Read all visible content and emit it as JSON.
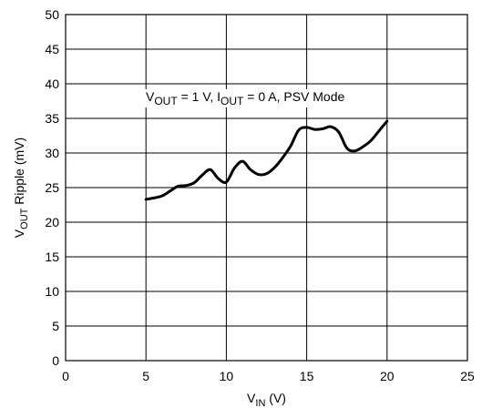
{
  "chart_data": {
    "type": "line",
    "annotation": {
      "v": "V",
      "out_sub": "OUT",
      "mid": " = 1 V, I",
      "out_sub2": "OUT",
      "rest": " = 0 A, PSV Mode"
    },
    "xlabel": {
      "main": "V",
      "sub": "IN",
      "rest": " (V)"
    },
    "ylabel": {
      "main": "V",
      "sub": "OUT",
      "rest": " Ripple (mV)"
    },
    "xlim": [
      0,
      25
    ],
    "ylim": [
      0,
      50
    ],
    "x_ticks": [
      0,
      5,
      10,
      15,
      20,
      25
    ],
    "y_ticks": [
      0,
      5,
      10,
      15,
      20,
      25,
      30,
      35,
      40,
      45,
      50
    ],
    "grid": true,
    "line_color": "#000000",
    "series": [
      {
        "x": [
          5.0,
          5.5,
          6.0,
          6.5,
          7.0,
          7.5,
          8.0,
          8.5,
          9.0,
          9.5,
          10.0,
          10.5,
          11.0,
          11.5,
          12.0,
          12.5,
          13.0,
          13.5,
          14.0,
          14.5,
          15.0,
          15.5,
          16.0,
          16.5,
          17.0,
          17.5,
          18.0,
          18.5,
          19.0,
          19.5,
          20.0
        ],
        "y": [
          23.3,
          23.5,
          23.8,
          24.5,
          25.2,
          25.3,
          25.7,
          26.8,
          27.6,
          26.3,
          25.8,
          27.8,
          28.8,
          27.6,
          26.9,
          27.0,
          27.9,
          29.3,
          31.0,
          33.3,
          33.7,
          33.4,
          33.5,
          33.8,
          33.0,
          30.7,
          30.3,
          30.9,
          31.8,
          33.2,
          34.6
        ]
      }
    ]
  }
}
